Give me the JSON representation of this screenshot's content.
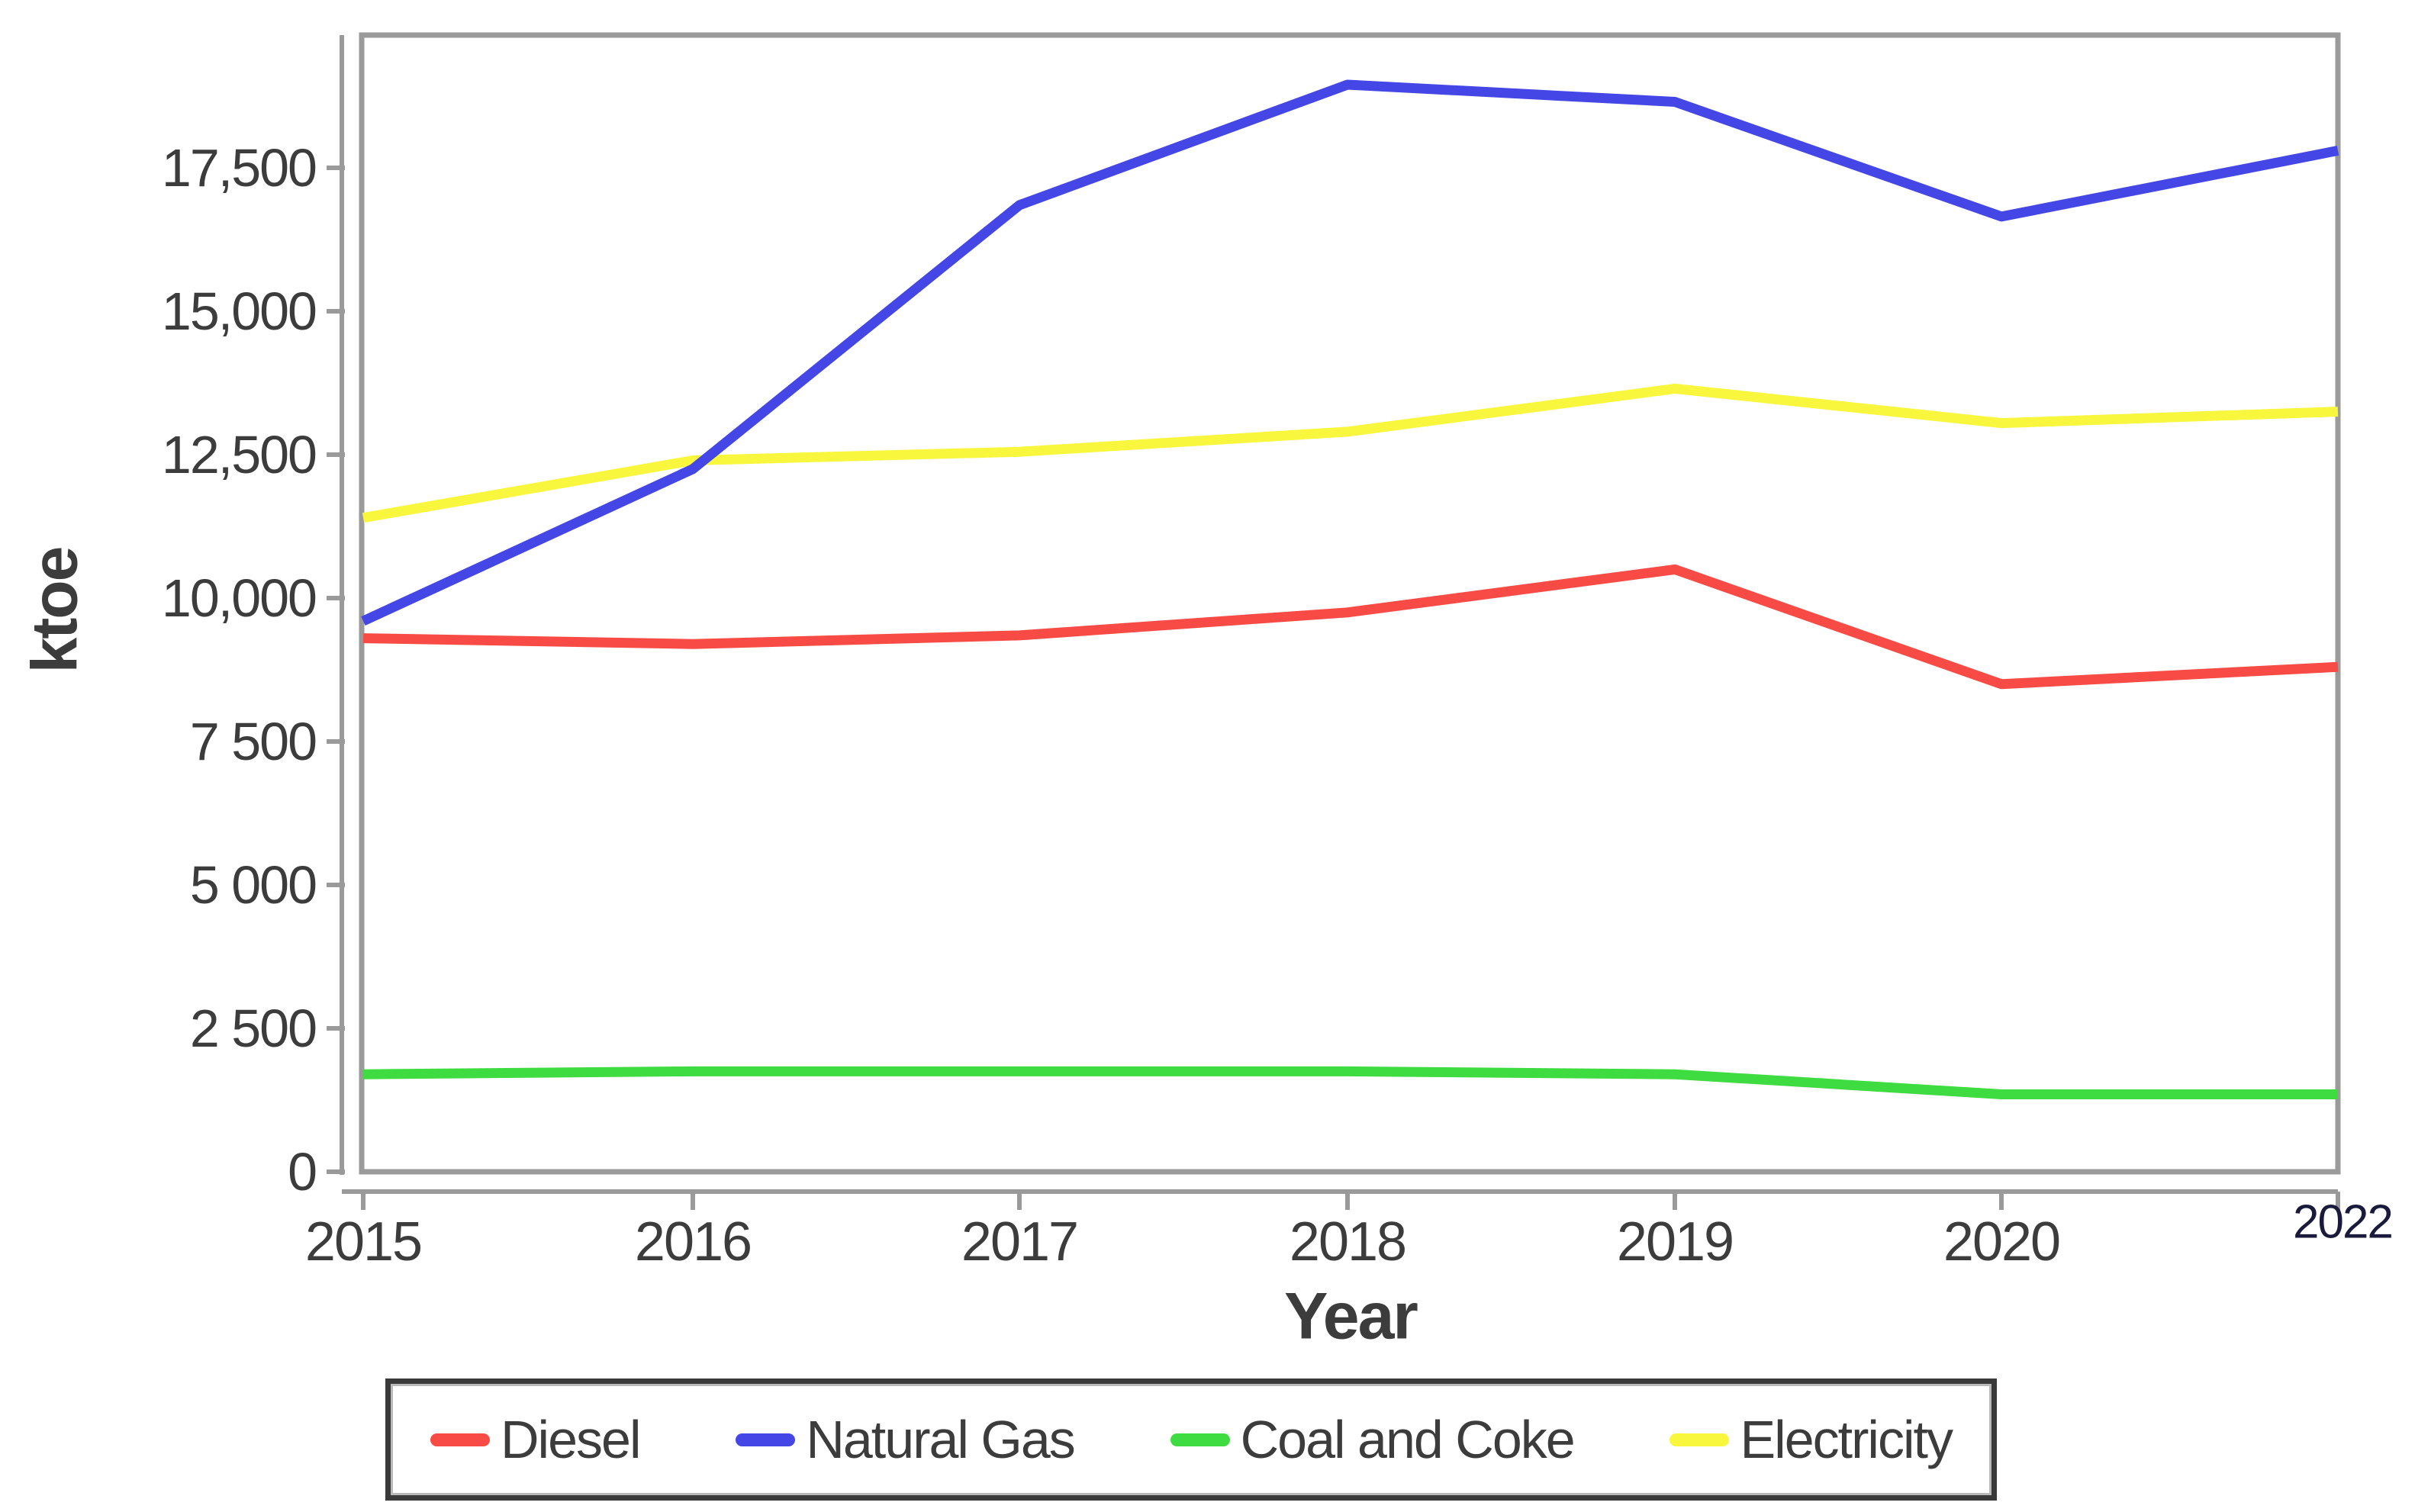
{
  "chart_data": {
    "type": "line",
    "title": "",
    "xlabel": "Year",
    "ylabel": "ktoe",
    "x": [
      "2015",
      "2016",
      "2017",
      "2018",
      "2019",
      "2020",
      "2022"
    ],
    "yticks": {
      "labels": [
        "0",
        "2 500",
        "5 000",
        "7 500",
        "10,000",
        "12,500",
        "15,000",
        "17,500"
      ],
      "values": [
        0,
        2500,
        5000,
        7500,
        10000,
        12500,
        15000,
        17500
      ]
    },
    "ylim": [
      0,
      19800
    ],
    "grid": false,
    "legend_position": "bottom",
    "series": [
      {
        "name": "Diesel",
        "color": "#f84b46",
        "values": [
          9300,
          9200,
          9350,
          9750,
          10500,
          8500,
          8800
        ]
      },
      {
        "name": "Natural Gas",
        "color": "#4447e5",
        "values": [
          9600,
          12250,
          16850,
          18950,
          18650,
          16650,
          17800
        ]
      },
      {
        "name": "Coal and Coke",
        "color": "#3edb41",
        "values": [
          1700,
          1750,
          1750,
          1750,
          1700,
          1350,
          1350
        ]
      },
      {
        "name": "Electricity",
        "color": "#f8f73d",
        "values": [
          11400,
          12400,
          12550,
          12900,
          13650,
          13050,
          13250
        ]
      }
    ],
    "axis_color": "#9a9a9a",
    "text_color": "#3c3c3c",
    "last_xtick_color": "#1a1a3c"
  }
}
